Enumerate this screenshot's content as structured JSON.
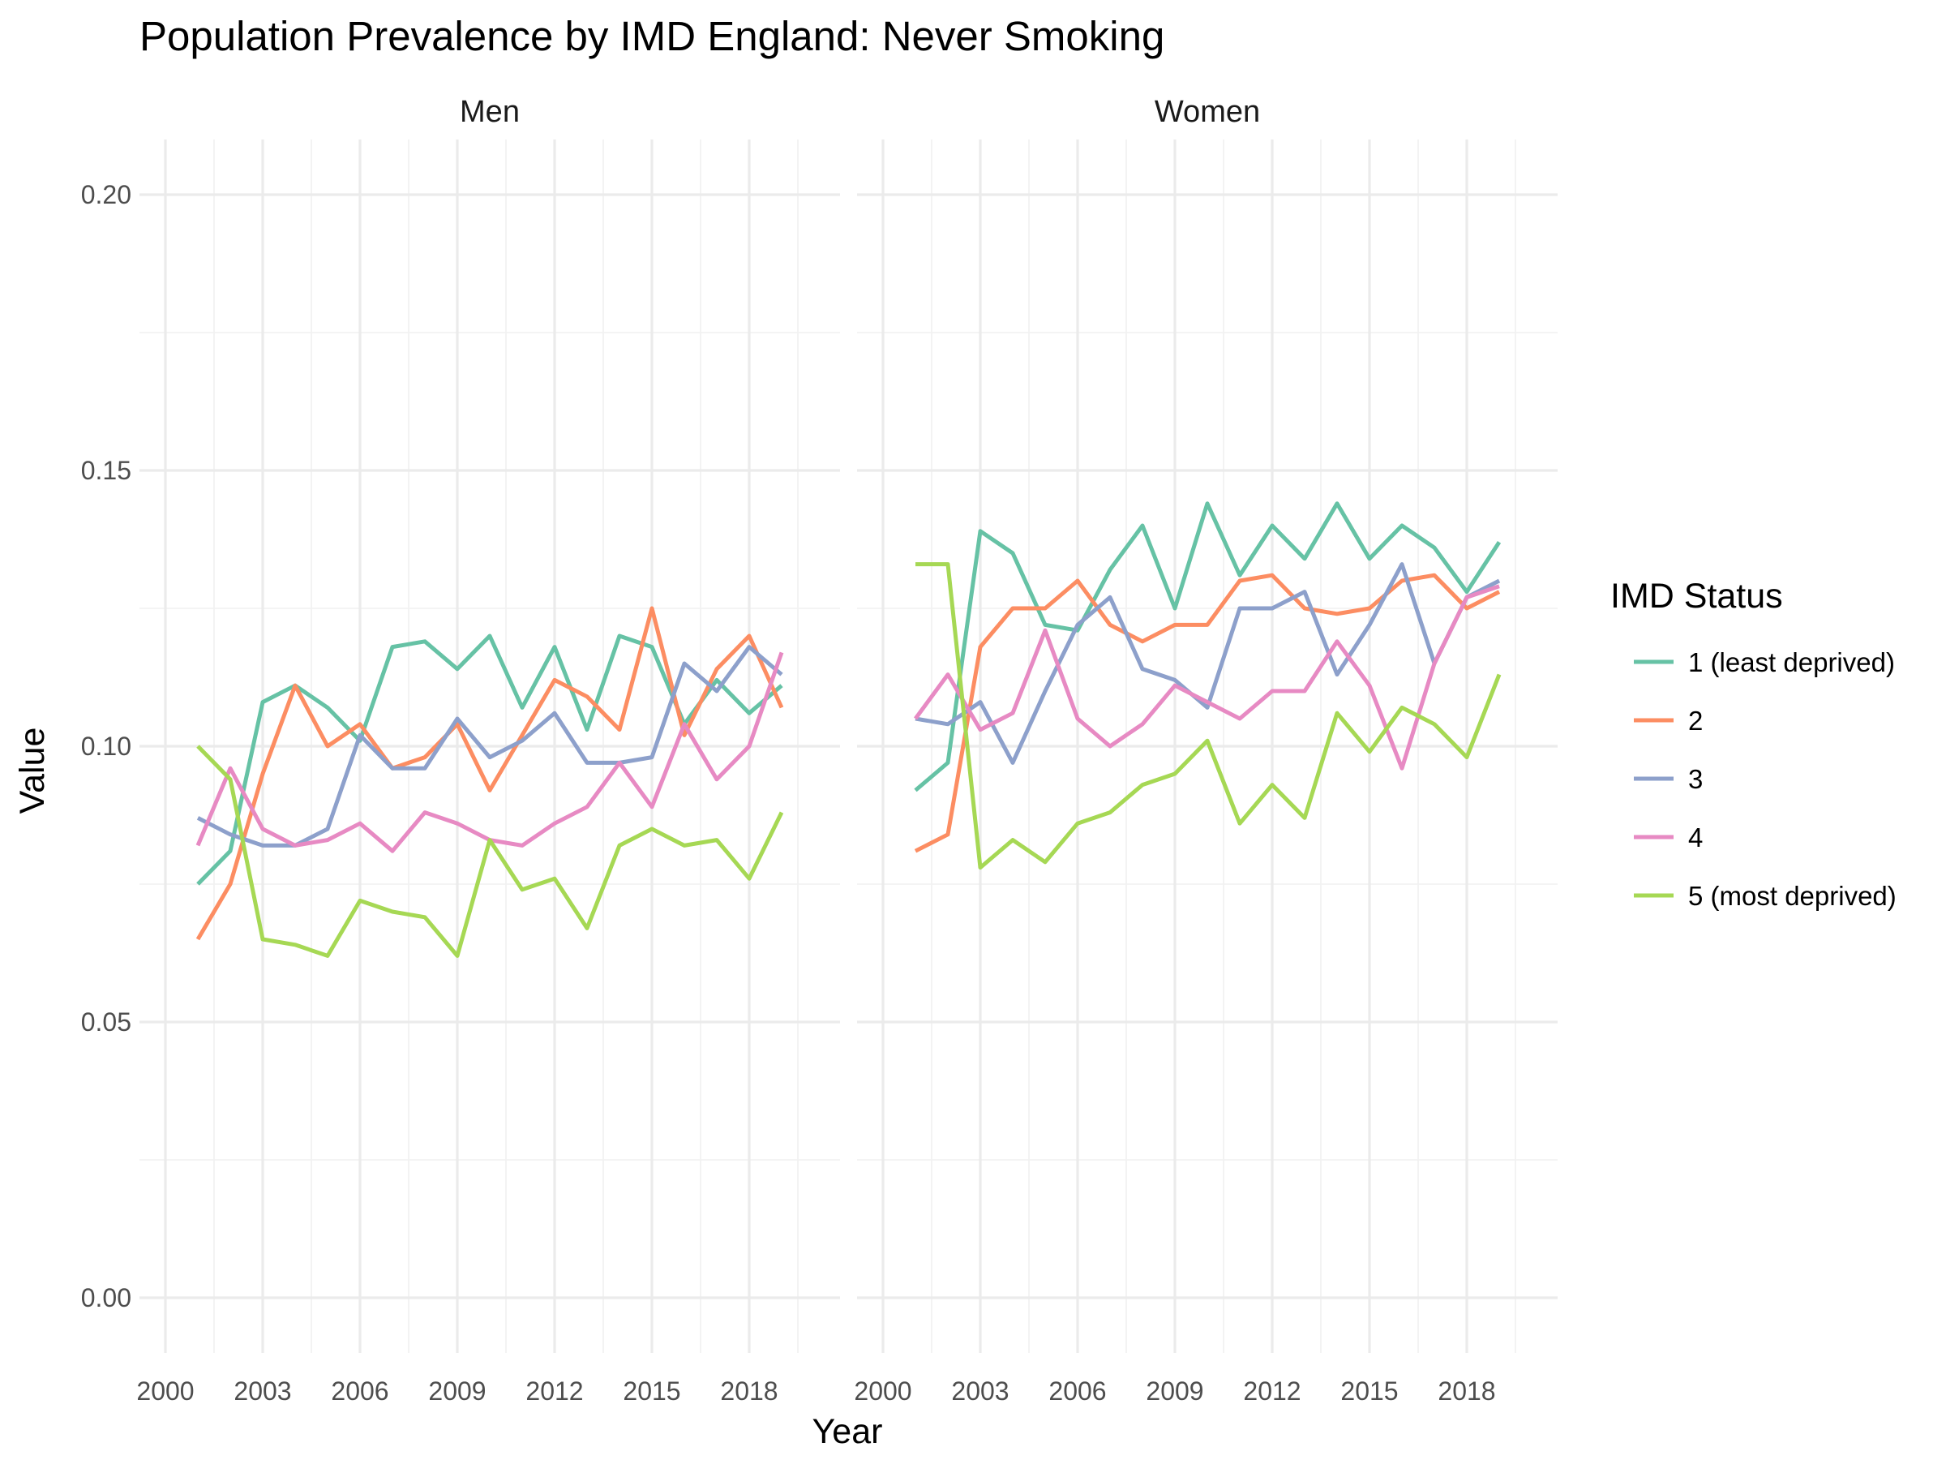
{
  "chart_data": {
    "type": "line",
    "title": "Population Prevalence by IMD England: Never Smoking",
    "xlabel": "Year",
    "ylabel": "Value",
    "xlim": [
      1999.2,
      2020.8
    ],
    "ylim": [
      -0.01,
      0.21
    ],
    "x_ticks": [
      2000,
      2003,
      2006,
      2009,
      2012,
      2015,
      2018
    ],
    "y_ticks": [
      0.0,
      0.05,
      0.1,
      0.15,
      0.2
    ],
    "y_tick_labels": [
      "0.00",
      "0.05",
      "0.10",
      "0.15",
      "0.20"
    ],
    "grid": true,
    "legend": {
      "title": "IMD Status",
      "position": "right"
    },
    "x": [
      2001,
      2002,
      2003,
      2004,
      2005,
      2006,
      2007,
      2008,
      2009,
      2010,
      2011,
      2012,
      2013,
      2014,
      2015,
      2016,
      2017,
      2018,
      2019
    ],
    "facets": [
      {
        "label": "Men",
        "series": [
          {
            "name": "1 (least deprived)",
            "color": "#66c2a5",
            "values": [
              0.075,
              0.081,
              0.108,
              0.111,
              0.107,
              0.101,
              0.118,
              0.119,
              0.114,
              0.12,
              0.107,
              0.118,
              0.103,
              0.12,
              0.118,
              0.104,
              0.112,
              0.106,
              0.111
            ]
          },
          {
            "name": "2",
            "color": "#fc8d62",
            "values": [
              0.065,
              0.075,
              0.095,
              0.111,
              0.1,
              0.104,
              0.096,
              0.098,
              0.104,
              0.092,
              0.102,
              0.112,
              0.109,
              0.103,
              0.125,
              0.102,
              0.114,
              0.12,
              0.107
            ]
          },
          {
            "name": "3",
            "color": "#8da0cb",
            "values": [
              0.087,
              0.084,
              0.082,
              0.082,
              0.085,
              0.102,
              0.096,
              0.096,
              0.105,
              0.098,
              0.101,
              0.106,
              0.097,
              0.097,
              0.098,
              0.115,
              0.11,
              0.118,
              0.113
            ]
          },
          {
            "name": "4",
            "color": "#e78ac3",
            "values": [
              0.082,
              0.096,
              0.085,
              0.082,
              0.083,
              0.086,
              0.081,
              0.088,
              0.086,
              0.083,
              0.082,
              0.086,
              0.089,
              0.097,
              0.089,
              0.104,
              0.094,
              0.1,
              0.117
            ]
          },
          {
            "name": "5 (most deprived)",
            "color": "#a6d854",
            "values": [
              0.1,
              0.094,
              0.065,
              0.064,
              0.062,
              0.072,
              0.07,
              0.069,
              0.062,
              0.083,
              0.074,
              0.076,
              0.067,
              0.082,
              0.085,
              0.082,
              0.083,
              0.076,
              0.088
            ]
          }
        ]
      },
      {
        "label": "Women",
        "series": [
          {
            "name": "1 (least deprived)",
            "color": "#66c2a5",
            "values": [
              0.092,
              0.097,
              0.139,
              0.135,
              0.122,
              0.121,
              0.132,
              0.14,
              0.125,
              0.144,
              0.131,
              0.14,
              0.134,
              0.144,
              0.134,
              0.14,
              0.136,
              0.128,
              0.137
            ]
          },
          {
            "name": "2",
            "color": "#fc8d62",
            "values": [
              0.081,
              0.084,
              0.118,
              0.125,
              0.125,
              0.13,
              0.122,
              0.119,
              0.122,
              0.122,
              0.13,
              0.131,
              0.125,
              0.124,
              0.125,
              0.13,
              0.131,
              0.125,
              0.128
            ]
          },
          {
            "name": "3",
            "color": "#8da0cb",
            "values": [
              0.105,
              0.104,
              0.108,
              0.097,
              0.11,
              0.122,
              0.127,
              0.114,
              0.112,
              0.107,
              0.125,
              0.125,
              0.128,
              0.113,
              0.122,
              0.133,
              0.115,
              0.127,
              0.13
            ]
          },
          {
            "name": "4",
            "color": "#e78ac3",
            "values": [
              0.105,
              0.113,
              0.103,
              0.106,
              0.121,
              0.105,
              0.1,
              0.104,
              0.111,
              0.108,
              0.105,
              0.11,
              0.11,
              0.119,
              0.111,
              0.096,
              0.115,
              0.127,
              0.129
            ]
          },
          {
            "name": "5 (most deprived)",
            "color": "#a6d854",
            "values": [
              0.133,
              0.133,
              0.078,
              0.083,
              0.079,
              0.086,
              0.088,
              0.093,
              0.095,
              0.101,
              0.086,
              0.093,
              0.087,
              0.106,
              0.099,
              0.107,
              0.104,
              0.098,
              0.113
            ]
          }
        ]
      }
    ]
  }
}
